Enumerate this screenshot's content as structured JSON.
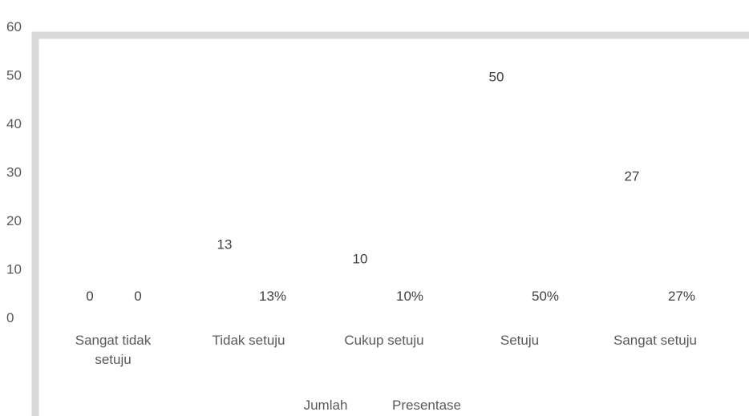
{
  "chart_data": {
    "type": "bar",
    "categories": [
      [
        "Sangat tidak",
        "setuju"
      ],
      [
        "Tidak setuju"
      ],
      [
        "Cukup setuju"
      ],
      [
        "Setuju"
      ],
      [
        "Sangat setuju"
      ]
    ],
    "series": [
      {
        "name": "Jumlah",
        "values": [
          0,
          13,
          10,
          50,
          27
        ],
        "labels": [
          "0",
          "13",
          "10",
          "50",
          "27"
        ]
      },
      {
        "name": "Presentase",
        "values": [
          0,
          13,
          10,
          50,
          27
        ],
        "labels": [
          "0",
          "13%",
          "10%",
          "50%",
          "27%"
        ]
      }
    ],
    "ylim": [
      0,
      60
    ],
    "yticks": [
      "0",
      "10",
      "20",
      "30",
      "40",
      "50",
      "60"
    ],
    "grid": false,
    "legend_position": "bottom",
    "frame_color": "#d9d9d9"
  }
}
